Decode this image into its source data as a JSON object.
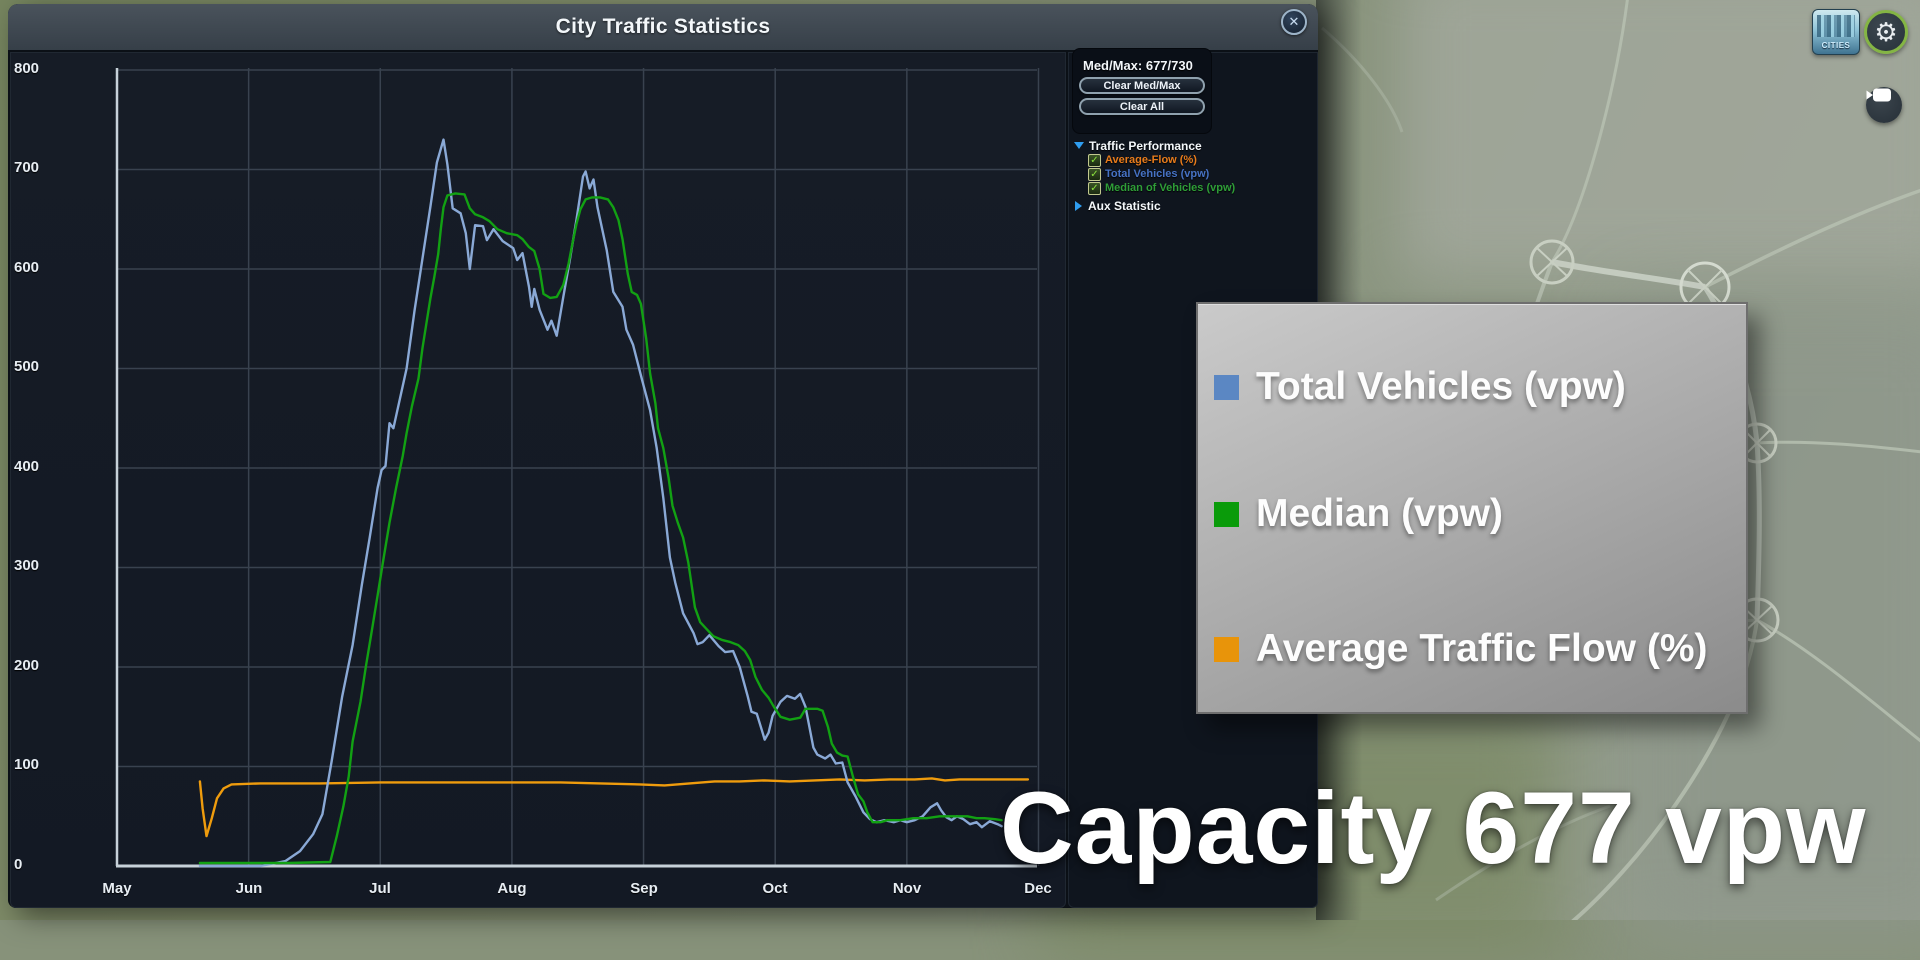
{
  "window": {
    "title": "City Traffic Statistics",
    "close_glyph": "✕"
  },
  "sidebar": {
    "medmax_text": "Med/Max: 677/730",
    "buttons": [
      {
        "label": "Clear Med/Max"
      },
      {
        "label": "Clear All"
      }
    ],
    "check_glyph": "✓",
    "tree": [
      {
        "label": "Traffic Performance",
        "type": "group",
        "expanded": true
      },
      {
        "label": "Average-Flow (%)",
        "checked": true,
        "color": "#e87c1c"
      },
      {
        "label": "Total Vehicles (vpw)",
        "checked": true,
        "color": "#4672c4"
      },
      {
        "label": "Median of Vehicles (vpw)",
        "checked": true,
        "color": "#2f9e38"
      },
      {
        "label": "Aux Statistic",
        "type": "group",
        "expanded": false
      }
    ]
  },
  "legend_overlay": {
    "items": [
      {
        "label": "Total Vehicles (vpw)",
        "color": "#5b87c3"
      },
      {
        "label": "Median (vpw)",
        "color": "#0a9b0a"
      },
      {
        "label": "Average Traffic Flow (%)",
        "color": "#e8940a"
      }
    ]
  },
  "capacity_label": "Capacity 677 vpw",
  "hud": {
    "logo_text": "CITIES",
    "gear_glyph": "⚙"
  },
  "chart_data": {
    "type": "line",
    "title": "City Traffic Statistics",
    "x_axis": {
      "unit": "months_since_May",
      "range": [
        0,
        7
      ],
      "labels": [
        "May",
        "Jun",
        "Jul",
        "Aug",
        "Sep",
        "Oct",
        "Nov",
        "Dec"
      ],
      "grid": true
    },
    "y_axis": {
      "min": 0,
      "max": 800,
      "tick_step": 100,
      "ticks": [
        800,
        700,
        600,
        500,
        400,
        300,
        200,
        100,
        0
      ],
      "grid": true
    },
    "stats": {
      "median": 677,
      "max": 730
    },
    "series": [
      {
        "name": "Average-Flow (%)",
        "color": "#ef9c0d",
        "points": [
          [
            0.63,
            85
          ],
          [
            0.65,
            58
          ],
          [
            0.68,
            30
          ],
          [
            0.72,
            48
          ],
          [
            0.76,
            68
          ],
          [
            0.81,
            78
          ],
          [
            0.87,
            82
          ],
          [
            1.09,
            83
          ],
          [
            1.54,
            83
          ],
          [
            2.0,
            84
          ],
          [
            2.45,
            84
          ],
          [
            2.91,
            84
          ],
          [
            3.37,
            84
          ],
          [
            3.67,
            83
          ],
          [
            3.97,
            82
          ],
          [
            4.16,
            81
          ],
          [
            4.35,
            83
          ],
          [
            4.54,
            85
          ],
          [
            4.73,
            85
          ],
          [
            4.92,
            86
          ],
          [
            5.11,
            85
          ],
          [
            5.3,
            86
          ],
          [
            5.49,
            87
          ],
          [
            5.68,
            86
          ],
          [
            5.87,
            87
          ],
          [
            6.06,
            87
          ],
          [
            6.19,
            88
          ],
          [
            6.29,
            86
          ],
          [
            6.4,
            87
          ],
          [
            6.59,
            87
          ],
          [
            6.78,
            87
          ],
          [
            6.92,
            87
          ]
        ]
      },
      {
        "name": "Total Vehicles (vpw)",
        "color": "#8aa9d6",
        "points": [
          [
            0.63,
            0
          ],
          [
            1.09,
            0
          ],
          [
            1.28,
            5
          ],
          [
            1.39,
            15
          ],
          [
            1.49,
            32
          ],
          [
            1.56,
            52
          ],
          [
            1.63,
            105
          ],
          [
            1.71,
            170
          ],
          [
            1.79,
            222
          ],
          [
            1.86,
            283
          ],
          [
            1.92,
            330
          ],
          [
            1.98,
            380
          ],
          [
            2.01,
            398
          ],
          [
            2.04,
            402
          ],
          [
            2.07,
            445
          ],
          [
            2.1,
            440
          ],
          [
            2.15,
            470
          ],
          [
            2.2,
            500
          ],
          [
            2.26,
            558
          ],
          [
            2.32,
            610
          ],
          [
            2.38,
            662
          ],
          [
            2.43,
            707
          ],
          [
            2.48,
            730
          ],
          [
            2.51,
            705
          ],
          [
            2.55,
            661
          ],
          [
            2.61,
            656
          ],
          [
            2.65,
            636
          ],
          [
            2.68,
            600
          ],
          [
            2.72,
            644
          ],
          [
            2.78,
            643
          ],
          [
            2.81,
            629
          ],
          [
            2.86,
            640
          ],
          [
            2.93,
            628
          ],
          [
            3.01,
            621
          ],
          [
            3.04,
            609
          ],
          [
            3.08,
            616
          ],
          [
            3.13,
            582
          ],
          [
            3.15,
            562
          ],
          [
            3.17,
            580
          ],
          [
            3.21,
            559
          ],
          [
            3.27,
            539
          ],
          [
            3.3,
            548
          ],
          [
            3.34,
            533
          ],
          [
            3.39,
            572
          ],
          [
            3.44,
            609
          ],
          [
            3.49,
            649
          ],
          [
            3.54,
            693
          ],
          [
            3.56,
            698
          ],
          [
            3.59,
            681
          ],
          [
            3.62,
            690
          ],
          [
            3.65,
            662
          ],
          [
            3.72,
            619
          ],
          [
            3.77,
            577
          ],
          [
            3.84,
            562
          ],
          [
            3.87,
            539
          ],
          [
            3.92,
            524
          ],
          [
            3.99,
            488
          ],
          [
            4.05,
            458
          ],
          [
            4.1,
            420
          ],
          [
            4.15,
            370
          ],
          [
            4.2,
            310
          ],
          [
            4.24,
            285
          ],
          [
            4.3,
            254
          ],
          [
            4.38,
            234
          ],
          [
            4.41,
            223
          ],
          [
            4.45,
            225
          ],
          [
            4.5,
            232
          ],
          [
            4.57,
            221
          ],
          [
            4.62,
            215
          ],
          [
            4.68,
            216
          ],
          [
            4.73,
            200
          ],
          [
            4.79,
            171
          ],
          [
            4.82,
            155
          ],
          [
            4.86,
            153
          ],
          [
            4.9,
            136
          ],
          [
            4.92,
            127
          ],
          [
            4.95,
            134
          ],
          [
            4.98,
            151
          ],
          [
            5.04,
            165
          ],
          [
            5.09,
            171
          ],
          [
            5.15,
            168
          ],
          [
            5.19,
            173
          ],
          [
            5.23,
            160
          ],
          [
            5.29,
            119
          ],
          [
            5.32,
            112
          ],
          [
            5.38,
            108
          ],
          [
            5.42,
            112
          ],
          [
            5.46,
            103
          ],
          [
            5.51,
            104
          ],
          [
            5.55,
            84
          ],
          [
            5.61,
            70
          ],
          [
            5.67,
            54
          ],
          [
            5.72,
            47
          ],
          [
            5.77,
            44
          ],
          [
            5.83,
            46
          ],
          [
            5.9,
            44
          ],
          [
            5.95,
            46
          ],
          [
            6.0,
            44
          ],
          [
            6.06,
            46
          ],
          [
            6.12,
            50
          ],
          [
            6.18,
            59
          ],
          [
            6.23,
            63
          ],
          [
            6.26,
            56
          ],
          [
            6.3,
            49
          ],
          [
            6.34,
            46
          ],
          [
            6.38,
            50
          ],
          [
            6.43,
            47
          ],
          [
            6.48,
            42
          ],
          [
            6.53,
            44
          ],
          [
            6.57,
            39
          ],
          [
            6.63,
            45
          ],
          [
            6.69,
            42
          ],
          [
            6.72,
            40
          ]
        ]
      },
      {
        "name": "Median of Vehicles (vpw)",
        "color": "#12a113",
        "points": [
          [
            0.63,
            3
          ],
          [
            1.3,
            3
          ],
          [
            1.62,
            4
          ],
          [
            1.67,
            30
          ],
          [
            1.72,
            60
          ],
          [
            1.76,
            90
          ],
          [
            1.79,
            125
          ],
          [
            1.85,
            165
          ],
          [
            1.89,
            200
          ],
          [
            1.94,
            240
          ],
          [
            1.98,
            272
          ],
          [
            2.02,
            305
          ],
          [
            2.07,
            345
          ],
          [
            2.12,
            380
          ],
          [
            2.17,
            412
          ],
          [
            2.2,
            435
          ],
          [
            2.24,
            462
          ],
          [
            2.29,
            490
          ],
          [
            2.32,
            520
          ],
          [
            2.38,
            570
          ],
          [
            2.41,
            592
          ],
          [
            2.44,
            615
          ],
          [
            2.46,
            640
          ],
          [
            2.48,
            662
          ],
          [
            2.51,
            674
          ],
          [
            2.57,
            676
          ],
          [
            2.64,
            675
          ],
          [
            2.68,
            661
          ],
          [
            2.72,
            655
          ],
          [
            2.78,
            652
          ],
          [
            2.83,
            648
          ],
          [
            2.89,
            640
          ],
          [
            2.96,
            636
          ],
          [
            3.04,
            634
          ],
          [
            3.08,
            630
          ],
          [
            3.13,
            622
          ],
          [
            3.17,
            618
          ],
          [
            3.21,
            600
          ],
          [
            3.24,
            575
          ],
          [
            3.29,
            571
          ],
          [
            3.34,
            572
          ],
          [
            3.39,
            584
          ],
          [
            3.43,
            605
          ],
          [
            3.46,
            626
          ],
          [
            3.49,
            645
          ],
          [
            3.52,
            660
          ],
          [
            3.56,
            670
          ],
          [
            3.61,
            672
          ],
          [
            3.67,
            672
          ],
          [
            3.73,
            670
          ],
          [
            3.77,
            662
          ],
          [
            3.81,
            649
          ],
          [
            3.84,
            630
          ],
          [
            3.88,
            595
          ],
          [
            3.91,
            577
          ],
          [
            3.95,
            574
          ],
          [
            3.98,
            565
          ],
          [
            4.02,
            530
          ],
          [
            4.05,
            495
          ],
          [
            4.09,
            465
          ],
          [
            4.11,
            440
          ],
          [
            4.15,
            420
          ],
          [
            4.19,
            390
          ],
          [
            4.22,
            362
          ],
          [
            4.26,
            345
          ],
          [
            4.3,
            330
          ],
          [
            4.34,
            305
          ],
          [
            4.39,
            260
          ],
          [
            4.43,
            245
          ],
          [
            4.48,
            238
          ],
          [
            4.53,
            231
          ],
          [
            4.6,
            227
          ],
          [
            4.66,
            225
          ],
          [
            4.72,
            222
          ],
          [
            4.77,
            216
          ],
          [
            4.81,
            207
          ],
          [
            4.85,
            190
          ],
          [
            4.9,
            177
          ],
          [
            4.95,
            169
          ],
          [
            4.99,
            160
          ],
          [
            5.04,
            150
          ],
          [
            5.11,
            147
          ],
          [
            5.19,
            149
          ],
          [
            5.23,
            158
          ],
          [
            5.32,
            158
          ],
          [
            5.36,
            156
          ],
          [
            5.4,
            140
          ],
          [
            5.43,
            123
          ],
          [
            5.47,
            114
          ],
          [
            5.51,
            111
          ],
          [
            5.55,
            110
          ],
          [
            5.59,
            90
          ],
          [
            5.63,
            72
          ],
          [
            5.67,
            65
          ],
          [
            5.7,
            54
          ],
          [
            5.74,
            44
          ],
          [
            5.8,
            44
          ],
          [
            5.85,
            46
          ],
          [
            5.95,
            46
          ],
          [
            6.05,
            48
          ],
          [
            6.15,
            48
          ],
          [
            6.25,
            50
          ],
          [
            6.35,
            50
          ],
          [
            6.46,
            50
          ],
          [
            6.53,
            48
          ],
          [
            6.59,
            48
          ],
          [
            6.67,
            47
          ],
          [
            6.72,
            46
          ]
        ]
      }
    ]
  }
}
